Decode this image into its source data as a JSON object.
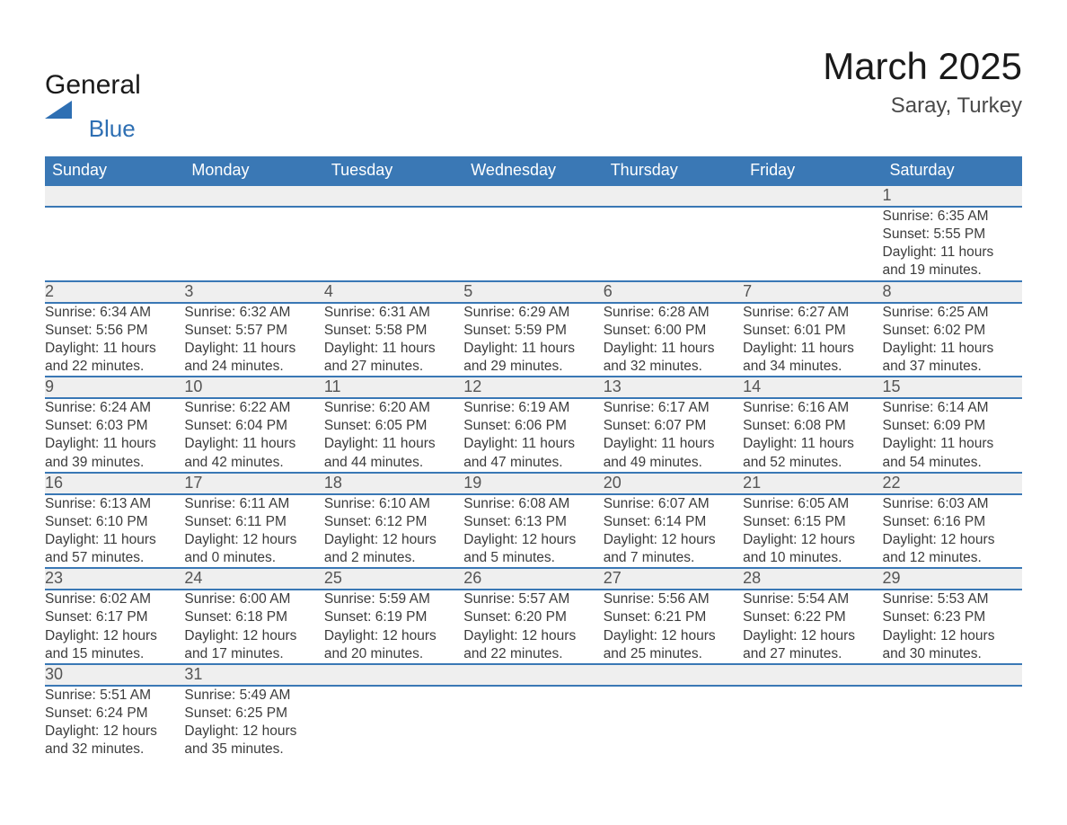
{
  "brand": {
    "name_part1": "General",
    "name_part2": "Blue"
  },
  "title": "March 2025",
  "location": "Saray, Turkey",
  "colors": {
    "header_bg": "#3a78b5",
    "header_text": "#ffffff",
    "row_border": "#3a78b5",
    "daynum_bg": "#efefef",
    "body_text": "#3c3c3c",
    "logo_blue": "#2e6fb3",
    "page_bg": "#ffffff"
  },
  "fonts": {
    "body_family": "Arial",
    "title_size_pt": 32,
    "location_size_pt": 18,
    "header_size_pt": 14,
    "cell_size_pt": 12
  },
  "columns": [
    "Sunday",
    "Monday",
    "Tuesday",
    "Wednesday",
    "Thursday",
    "Friday",
    "Saturday"
  ],
  "weeks": [
    [
      null,
      null,
      null,
      null,
      null,
      null,
      {
        "n": "1",
        "sr": "Sunrise: 6:35 AM",
        "ss": "Sunset: 5:55 PM",
        "d1": "Daylight: 11 hours",
        "d2": "and 19 minutes."
      }
    ],
    [
      {
        "n": "2",
        "sr": "Sunrise: 6:34 AM",
        "ss": "Sunset: 5:56 PM",
        "d1": "Daylight: 11 hours",
        "d2": "and 22 minutes."
      },
      {
        "n": "3",
        "sr": "Sunrise: 6:32 AM",
        "ss": "Sunset: 5:57 PM",
        "d1": "Daylight: 11 hours",
        "d2": "and 24 minutes."
      },
      {
        "n": "4",
        "sr": "Sunrise: 6:31 AM",
        "ss": "Sunset: 5:58 PM",
        "d1": "Daylight: 11 hours",
        "d2": "and 27 minutes."
      },
      {
        "n": "5",
        "sr": "Sunrise: 6:29 AM",
        "ss": "Sunset: 5:59 PM",
        "d1": "Daylight: 11 hours",
        "d2": "and 29 minutes."
      },
      {
        "n": "6",
        "sr": "Sunrise: 6:28 AM",
        "ss": "Sunset: 6:00 PM",
        "d1": "Daylight: 11 hours",
        "d2": "and 32 minutes."
      },
      {
        "n": "7",
        "sr": "Sunrise: 6:27 AM",
        "ss": "Sunset: 6:01 PM",
        "d1": "Daylight: 11 hours",
        "d2": "and 34 minutes."
      },
      {
        "n": "8",
        "sr": "Sunrise: 6:25 AM",
        "ss": "Sunset: 6:02 PM",
        "d1": "Daylight: 11 hours",
        "d2": "and 37 minutes."
      }
    ],
    [
      {
        "n": "9",
        "sr": "Sunrise: 6:24 AM",
        "ss": "Sunset: 6:03 PM",
        "d1": "Daylight: 11 hours",
        "d2": "and 39 minutes."
      },
      {
        "n": "10",
        "sr": "Sunrise: 6:22 AM",
        "ss": "Sunset: 6:04 PM",
        "d1": "Daylight: 11 hours",
        "d2": "and 42 minutes."
      },
      {
        "n": "11",
        "sr": "Sunrise: 6:20 AM",
        "ss": "Sunset: 6:05 PM",
        "d1": "Daylight: 11 hours",
        "d2": "and 44 minutes."
      },
      {
        "n": "12",
        "sr": "Sunrise: 6:19 AM",
        "ss": "Sunset: 6:06 PM",
        "d1": "Daylight: 11 hours",
        "d2": "and 47 minutes."
      },
      {
        "n": "13",
        "sr": "Sunrise: 6:17 AM",
        "ss": "Sunset: 6:07 PM",
        "d1": "Daylight: 11 hours",
        "d2": "and 49 minutes."
      },
      {
        "n": "14",
        "sr": "Sunrise: 6:16 AM",
        "ss": "Sunset: 6:08 PM",
        "d1": "Daylight: 11 hours",
        "d2": "and 52 minutes."
      },
      {
        "n": "15",
        "sr": "Sunrise: 6:14 AM",
        "ss": "Sunset: 6:09 PM",
        "d1": "Daylight: 11 hours",
        "d2": "and 54 minutes."
      }
    ],
    [
      {
        "n": "16",
        "sr": "Sunrise: 6:13 AM",
        "ss": "Sunset: 6:10 PM",
        "d1": "Daylight: 11 hours",
        "d2": "and 57 minutes."
      },
      {
        "n": "17",
        "sr": "Sunrise: 6:11 AM",
        "ss": "Sunset: 6:11 PM",
        "d1": "Daylight: 12 hours",
        "d2": "and 0 minutes."
      },
      {
        "n": "18",
        "sr": "Sunrise: 6:10 AM",
        "ss": "Sunset: 6:12 PM",
        "d1": "Daylight: 12 hours",
        "d2": "and 2 minutes."
      },
      {
        "n": "19",
        "sr": "Sunrise: 6:08 AM",
        "ss": "Sunset: 6:13 PM",
        "d1": "Daylight: 12 hours",
        "d2": "and 5 minutes."
      },
      {
        "n": "20",
        "sr": "Sunrise: 6:07 AM",
        "ss": "Sunset: 6:14 PM",
        "d1": "Daylight: 12 hours",
        "d2": "and 7 minutes."
      },
      {
        "n": "21",
        "sr": "Sunrise: 6:05 AM",
        "ss": "Sunset: 6:15 PM",
        "d1": "Daylight: 12 hours",
        "d2": "and 10 minutes."
      },
      {
        "n": "22",
        "sr": "Sunrise: 6:03 AM",
        "ss": "Sunset: 6:16 PM",
        "d1": "Daylight: 12 hours",
        "d2": "and 12 minutes."
      }
    ],
    [
      {
        "n": "23",
        "sr": "Sunrise: 6:02 AM",
        "ss": "Sunset: 6:17 PM",
        "d1": "Daylight: 12 hours",
        "d2": "and 15 minutes."
      },
      {
        "n": "24",
        "sr": "Sunrise: 6:00 AM",
        "ss": "Sunset: 6:18 PM",
        "d1": "Daylight: 12 hours",
        "d2": "and 17 minutes."
      },
      {
        "n": "25",
        "sr": "Sunrise: 5:59 AM",
        "ss": "Sunset: 6:19 PM",
        "d1": "Daylight: 12 hours",
        "d2": "and 20 minutes."
      },
      {
        "n": "26",
        "sr": "Sunrise: 5:57 AM",
        "ss": "Sunset: 6:20 PM",
        "d1": "Daylight: 12 hours",
        "d2": "and 22 minutes."
      },
      {
        "n": "27",
        "sr": "Sunrise: 5:56 AM",
        "ss": "Sunset: 6:21 PM",
        "d1": "Daylight: 12 hours",
        "d2": "and 25 minutes."
      },
      {
        "n": "28",
        "sr": "Sunrise: 5:54 AM",
        "ss": "Sunset: 6:22 PM",
        "d1": "Daylight: 12 hours",
        "d2": "and 27 minutes."
      },
      {
        "n": "29",
        "sr": "Sunrise: 5:53 AM",
        "ss": "Sunset: 6:23 PM",
        "d1": "Daylight: 12 hours",
        "d2": "and 30 minutes."
      }
    ],
    [
      {
        "n": "30",
        "sr": "Sunrise: 5:51 AM",
        "ss": "Sunset: 6:24 PM",
        "d1": "Daylight: 12 hours",
        "d2": "and 32 minutes."
      },
      {
        "n": "31",
        "sr": "Sunrise: 5:49 AM",
        "ss": "Sunset: 6:25 PM",
        "d1": "Daylight: 12 hours",
        "d2": "and 35 minutes."
      },
      null,
      null,
      null,
      null,
      null
    ]
  ]
}
